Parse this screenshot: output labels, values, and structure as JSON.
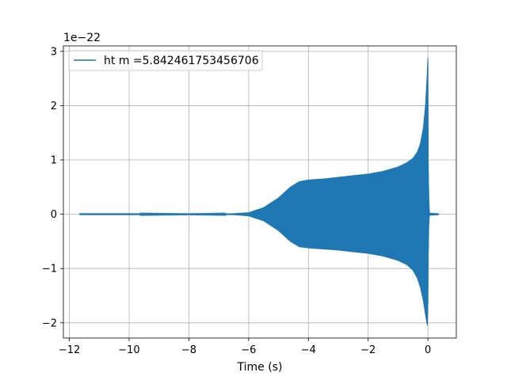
{
  "chart_data": {
    "type": "line",
    "title": "",
    "xlabel": "Time (s)",
    "ylabel": "",
    "y_offset_label": "1e−22",
    "y_scale": 1e-22,
    "xlim": [
      -12.2,
      0.95
    ],
    "ylim": [
      -2.28,
      3.1
    ],
    "grid": true,
    "legend_position": "upper-left",
    "x_ticks": [
      -12,
      -10,
      -8,
      -6,
      -4,
      -2,
      0
    ],
    "x_tick_labels": [
      "−12",
      "−10",
      "−8",
      "−6",
      "−4",
      "−2",
      "0"
    ],
    "y_ticks": [
      -2,
      -1,
      0,
      1,
      2,
      3
    ],
    "y_tick_labels": [
      "−2",
      "−1",
      "0",
      "1",
      "2",
      "3"
    ],
    "series": [
      {
        "name": "ht m =5.842461753456706",
        "color": "#1f77b4",
        "x": [
          -11.65,
          -10,
          -8,
          -6.5,
          -6,
          -5.5,
          -5,
          -4.6,
          -4.3,
          -4.0,
          -3.5,
          -3.0,
          -2.5,
          -2.0,
          -1.5,
          -1.0,
          -0.7,
          -0.5,
          -0.35,
          -0.25,
          -0.15,
          -0.08,
          -0.02,
          0.0,
          0.01,
          0.03,
          0.05,
          0.35
        ],
        "envelope_upper": [
          0.01,
          0.01,
          0.005,
          0.01,
          0.03,
          0.12,
          0.3,
          0.5,
          0.6,
          0.63,
          0.65,
          0.68,
          0.71,
          0.74,
          0.79,
          0.87,
          0.95,
          1.03,
          1.15,
          1.3,
          1.6,
          2.0,
          2.6,
          2.88,
          1.0,
          0.3,
          0.02,
          0.01
        ],
        "envelope_lower": [
          -0.01,
          -0.01,
          -0.005,
          -0.01,
          -0.03,
          -0.12,
          -0.3,
          -0.5,
          -0.6,
          -0.62,
          -0.64,
          -0.66,
          -0.69,
          -0.72,
          -0.77,
          -0.85,
          -0.93,
          -1.03,
          -1.18,
          -1.35,
          -1.6,
          -1.85,
          -2.05,
          -1.6,
          -0.8,
          -0.2,
          -0.02,
          -0.01
        ]
      }
    ]
  }
}
